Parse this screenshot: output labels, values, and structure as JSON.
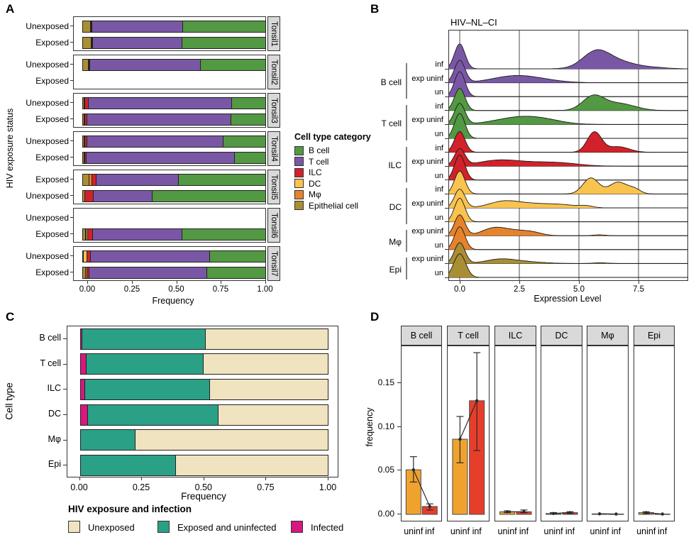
{
  "panel_labels": {
    "a": "A",
    "b": "B",
    "c": "C",
    "d": "D"
  },
  "palette": {
    "cell_types": {
      "b_cell": "#539843",
      "t_cell": "#7a57a5",
      "ilc": "#d1222a",
      "dc": "#f9c34f",
      "mphi": "#e5832c",
      "epithelial": "#aa8e33"
    },
    "exposure": {
      "unexposed": "#f0e3bf",
      "exposed_uninfected": "#2aa187",
      "infected": "#d6187f"
    },
    "infection_bars": {
      "uninf": "#efa32e",
      "inf": "#e73e2b"
    },
    "strip_bg": "#d9d9d9"
  },
  "chart_data": [
    {
      "id": "A",
      "type": "bar",
      "orientation": "horizontal",
      "stacked": true,
      "position": "fill",
      "xlabel": "Frequency",
      "ylabel": "HIV exposure status",
      "x_ticks": [
        "0.00",
        "0.25",
        "0.50",
        "0.75",
        "1.00"
      ],
      "legend": {
        "title": "Cell type category",
        "items": [
          "B cell",
          "T cell",
          "ILC",
          "DC",
          "Mφ",
          "Epithelial cell"
        ],
        "colors": [
          "#539843",
          "#7a57a5",
          "#d1222a",
          "#f9c34f",
          "#e5832c",
          "#aa8e33"
        ]
      },
      "stack_order": [
        "epithelial",
        "mphi",
        "dc",
        "ilc",
        "t_cell",
        "b_cell"
      ],
      "facets": [
        {
          "name": "Tonsil1",
          "rows": [
            {
              "label": "Unexposed",
              "values": {
                "epithelial": 0.041,
                "mphi": 0.004,
                "dc": 0,
                "ilc": 0.004,
                "t_cell": 0.498,
                "b_cell": 0.453
              }
            },
            {
              "label": "Exposed",
              "values": {
                "epithelial": 0.046,
                "mphi": 0.004,
                "dc": 0,
                "ilc": 0.004,
                "t_cell": 0.489,
                "b_cell": 0.457
              }
            }
          ]
        },
        {
          "name": "Tonsil2",
          "rows": [
            {
              "label": "Unexposed",
              "values": {
                "epithelial": 0.03,
                "mphi": 0.002,
                "dc": 0,
                "ilc": 0.002,
                "t_cell": 0.61,
                "b_cell": 0.356
              }
            },
            {
              "label": "Exposed",
              "values": null
            }
          ]
        },
        {
          "name": "Tonsil3",
          "rows": [
            {
              "label": "Unexposed",
              "values": {
                "epithelial": 0.007,
                "mphi": 0.003,
                "dc": 0,
                "ilc": 0.02,
                "t_cell": 0.785,
                "b_cell": 0.185
              }
            },
            {
              "label": "Exposed",
              "values": {
                "epithelial": 0.006,
                "mphi": 0.002,
                "dc": 0,
                "ilc": 0.015,
                "t_cell": 0.789,
                "b_cell": 0.188
              }
            }
          ]
        },
        {
          "name": "Tonsil4",
          "rows": [
            {
              "label": "Unexposed",
              "values": {
                "epithelial": 0.008,
                "mphi": 0.003,
                "dc": 0,
                "ilc": 0.012,
                "t_cell": 0.747,
                "b_cell": 0.23
              }
            },
            {
              "label": "Exposed",
              "values": {
                "epithelial": 0.006,
                "mphi": 0.002,
                "dc": 0,
                "ilc": 0.01,
                "t_cell": 0.814,
                "b_cell": 0.168
              }
            }
          ]
        },
        {
          "name": "Tonsil5",
          "rows": [
            {
              "label": "Exposed",
              "values": {
                "epithelial": 0.034,
                "mphi": 0.018,
                "dc": 0,
                "ilc": 0.022,
                "t_cell": 0.453,
                "b_cell": 0.473
              }
            },
            {
              "label": "Unexposed",
              "values": {
                "epithelial": 0.013,
                "mphi": 0,
                "dc": 0,
                "ilc": 0.045,
                "t_cell": 0.324,
                "b_cell": 0.618
              }
            }
          ]
        },
        {
          "name": "Tonsil6",
          "rows": [
            {
              "label": "Unexposed",
              "values": null
            },
            {
              "label": "Exposed",
              "values": {
                "epithelial": 0.016,
                "mphi": 0.005,
                "dc": 0.007,
                "ilc": 0.028,
                "t_cell": 0.49,
                "b_cell": 0.454
              }
            }
          ]
        },
        {
          "name": "Tonsil7",
          "rows": [
            {
              "label": "Unexposed",
              "values": {
                "epithelial": 0.004,
                "mphi": 0,
                "dc": 0.018,
                "ilc": 0.022,
                "t_cell": 0.652,
                "b_cell": 0.304
              }
            },
            {
              "label": "Exposed",
              "values": {
                "epithelial": 0.015,
                "mphi": 0.008,
                "dc": 0,
                "ilc": 0.013,
                "t_cell": 0.645,
                "b_cell": 0.319
              }
            }
          ]
        }
      ]
    },
    {
      "id": "B",
      "type": "area",
      "subtype": "ridgeline",
      "title": "HIV–NL–CI",
      "xlabel": "Expression Level",
      "x_ticks": [
        "0.0",
        "2.5",
        "5.0",
        "7.5"
      ],
      "x_tick_values": [
        0,
        2.5,
        5,
        7.5
      ],
      "x_range": [
        -0.48,
        9.58
      ],
      "row_labels_note": "peaks are [center, sd, height-in-row-units]",
      "groups": [
        {
          "name": "B cell",
          "color": "#7a57a5",
          "rows": [
            {
              "label": "inf",
              "peaks": [
                [
                  0,
                  0.22,
                  1.8
                ],
                [
                  5.7,
                  0.55,
                  1.0
                ],
                [
                  6.5,
                  0.85,
                  0.55
                ],
                [
                  8.3,
                  0.5,
                  0.06
                ]
              ]
            },
            {
              "label": "exp uninf",
              "peaks": [
                [
                  0,
                  0.22,
                  1.6
                ],
                [
                  2.2,
                  0.9,
                  0.42
                ],
                [
                  3.3,
                  0.9,
                  0.18
                ]
              ]
            },
            {
              "label": "un",
              "peaks": [
                [
                  0,
                  0.22,
                  1.8
                ]
              ]
            }
          ]
        },
        {
          "name": "T cell",
          "color": "#539843",
          "rows": [
            {
              "label": "inf",
              "peaks": [
                [
                  0,
                  0.22,
                  1.6
                ],
                [
                  5.6,
                  0.45,
                  1.0
                ],
                [
                  6.7,
                  0.65,
                  0.5
                ]
              ]
            },
            {
              "label": "exp uninf",
              "peaks": [
                [
                  0,
                  0.22,
                  1.5
                ],
                [
                  2.5,
                  1.0,
                  0.5
                ],
                [
                  3.6,
                  0.8,
                  0.18
                ]
              ]
            },
            {
              "label": "un",
              "peaks": [
                [
                  0,
                  0.22,
                  1.8
                ]
              ]
            }
          ]
        },
        {
          "name": "ILC",
          "color": "#d1222a",
          "rows": [
            {
              "label": "inf",
              "peaks": [
                [
                  0,
                  0.22,
                  1.5
                ],
                [
                  5.65,
                  0.3,
                  1.45
                ],
                [
                  6.65,
                  0.45,
                  0.4
                ]
              ]
            },
            {
              "label": "exp uninf",
              "peaks": [
                [
                  0,
                  0.22,
                  1.2
                ],
                [
                  1.5,
                  0.8,
                  0.3
                ],
                [
                  2.8,
                  1.2,
                  0.25
                ],
                [
                  4.3,
                  0.8,
                  0.14
                ]
              ]
            },
            {
              "label": "un",
              "peaks": [
                [
                  0,
                  0.22,
                  1.8
                ]
              ]
            }
          ]
        },
        {
          "name": "DC",
          "color": "#f9c34f",
          "rows": [
            {
              "label": "inf",
              "peaks": [
                [
                  0,
                  0.22,
                  1.65
                ],
                [
                  5.5,
                  0.33,
                  1.15
                ],
                [
                  6.65,
                  0.38,
                  0.85
                ],
                [
                  7.35,
                  0.25,
                  0.3
                ]
              ]
            },
            {
              "label": "exp uninf",
              "peaks": [
                [
                  0,
                  0.22,
                  1.35
                ],
                [
                  1.8,
                  0.6,
                  0.38
                ],
                [
                  3.0,
                  0.9,
                  0.3
                ],
                [
                  4.4,
                  0.6,
                  0.15
                ],
                [
                  5.3,
                  0.28,
                  0.12
                ]
              ]
            },
            {
              "label": "un",
              "peaks": [
                [
                  0,
                  0.22,
                  1.7
                ]
              ]
            }
          ]
        },
        {
          "name": "Mφ",
          "color": "#e5832c",
          "rows": [
            {
              "label": "exp uninf",
              "peaks": [
                [
                  0,
                  0.22,
                  1.5
                ],
                [
                  1.45,
                  0.5,
                  0.55
                ],
                [
                  2.4,
                  0.5,
                  0.3
                ],
                [
                  3.1,
                  0.4,
                  0.18
                ],
                [
                  5.85,
                  0.25,
                  0.06
                ]
              ]
            },
            {
              "label": "un",
              "peaks": [
                [
                  0,
                  0.22,
                  1.65
                ]
              ]
            }
          ]
        },
        {
          "name": "Epi",
          "color": "#aa8e33",
          "rows": [
            {
              "label": "exp uninf",
              "peaks": [
                [
                  0,
                  0.22,
                  1.5
                ],
                [
                  1.7,
                  0.6,
                  0.3
                ],
                [
                  2.8,
                  0.7,
                  0.12
                ],
                [
                  5.9,
                  0.3,
                  0.05
                ]
              ]
            },
            {
              "label": "un",
              "peaks": [
                [
                  0,
                  0.25,
                  1.7
                ]
              ]
            }
          ]
        }
      ]
    },
    {
      "id": "C",
      "type": "bar",
      "orientation": "horizontal",
      "stacked": true,
      "position": "fill",
      "xlabel": "Frequency",
      "ylabel": "Cell type",
      "x_ticks": [
        "0.00",
        "0.25",
        "0.50",
        "0.75",
        "1.00"
      ],
      "legend": {
        "title": "HIV exposure and infection",
        "items": [
          "Unexposed",
          "Exposed and uninfected",
          "Infected"
        ],
        "colors": [
          "#f0e3bf",
          "#2aa187",
          "#d6187f"
        ]
      },
      "categories": [
        "B cell",
        "T cell",
        "ILC",
        "DC",
        "Mφ",
        "Epi"
      ],
      "series": [
        {
          "name": "Infected",
          "color": "#d6187f",
          "values": [
            0.006,
            0.023,
            0.018,
            0.03,
            0.0,
            0.0
          ]
        },
        {
          "name": "Exposed and uninfected",
          "color": "#2aa187",
          "values": [
            0.5,
            0.476,
            0.507,
            0.528,
            0.222,
            0.387
          ]
        },
        {
          "name": "Unexposed",
          "color": "#f0e3bf",
          "values": [
            0.494,
            0.501,
            0.475,
            0.442,
            0.778,
            0.613
          ]
        }
      ]
    },
    {
      "id": "D",
      "type": "bar",
      "error_bars": true,
      "ylabel": "frequency",
      "y_ticks": [
        "0.00",
        "0.05",
        "0.10",
        "0.15"
      ],
      "y_tick_values": [
        0,
        0.05,
        0.1,
        0.15
      ],
      "ylim": [
        0,
        0.19
      ],
      "categories": [
        "uninf",
        "inf"
      ],
      "colors": {
        "uninf": "#efa32e",
        "inf": "#e73e2b"
      },
      "facets": [
        {
          "name": "B cell",
          "bars": [
            {
              "cat": "uninf",
              "mean": 0.051,
              "lo": 0.037,
              "hi": 0.066
            },
            {
              "cat": "inf",
              "mean": 0.009,
              "lo": 0.005,
              "hi": 0.012
            }
          ]
        },
        {
          "name": "T cell",
          "bars": [
            {
              "cat": "uninf",
              "mean": 0.086,
              "lo": 0.059,
              "hi": 0.112
            },
            {
              "cat": "inf",
              "mean": 0.13,
              "lo": 0.073,
              "hi": 0.185
            }
          ]
        },
        {
          "name": "ILC",
          "bars": [
            {
              "cat": "uninf",
              "mean": 0.003,
              "lo": 0.002,
              "hi": 0.004
            },
            {
              "cat": "inf",
              "mean": 0.003,
              "lo": 0.002,
              "hi": 0.005
            }
          ]
        },
        {
          "name": "DC",
          "bars": [
            {
              "cat": "uninf",
              "mean": 0.001,
              "lo": 0.0007,
              "hi": 0.002
            },
            {
              "cat": "inf",
              "mean": 0.002,
              "lo": 0.001,
              "hi": 0.003
            }
          ]
        },
        {
          "name": "Mφ",
          "bars": [
            {
              "cat": "uninf",
              "mean": 0.0006,
              "lo": 0.0003,
              "hi": 0.001
            },
            {
              "cat": "inf",
              "mean": 0.0004,
              "lo": 0.0002,
              "hi": 0.0007
            }
          ]
        },
        {
          "name": "Epi",
          "bars": [
            {
              "cat": "uninf",
              "mean": 0.002,
              "lo": 0.001,
              "hi": 0.003
            },
            {
              "cat": "inf",
              "mean": 0.0004,
              "lo": 0.0002,
              "hi": 0.0007
            }
          ]
        }
      ]
    }
  ]
}
